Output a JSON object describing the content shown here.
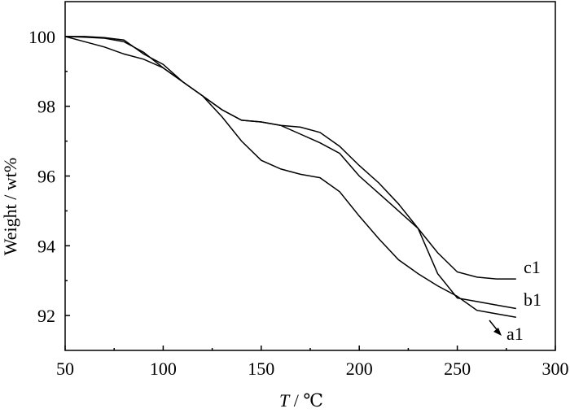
{
  "chart_data": {
    "type": "line",
    "xlabel_var": "T",
    "xlabel_unit": " / ℃",
    "ylabel": "Weight / wt%",
    "xlim": [
      50,
      300
    ],
    "ylim": [
      91,
      101
    ],
    "x_ticks": [
      50,
      100,
      150,
      200,
      250,
      300
    ],
    "y_ticks": [
      92,
      94,
      96,
      98,
      100
    ],
    "series": [
      {
        "name": "a1",
        "x": [
          50,
          60,
          70,
          80,
          90,
          100,
          110,
          120,
          130,
          140,
          150,
          160,
          170,
          180,
          190,
          200,
          210,
          220,
          230,
          240,
          250,
          260,
          270,
          280
        ],
        "y": [
          100,
          100,
          99.97,
          99.9,
          99.5,
          99.2,
          98.7,
          98.3,
          97.7,
          97.0,
          96.45,
          96.2,
          96.05,
          95.95,
          95.55,
          94.85,
          94.2,
          93.6,
          93.2,
          92.85,
          92.55,
          92.15,
          92.05,
          91.95
        ]
      },
      {
        "name": "b1",
        "x": [
          50,
          60,
          70,
          80,
          90,
          100,
          110,
          120,
          130,
          140,
          150,
          160,
          170,
          180,
          190,
          200,
          210,
          220,
          230,
          240,
          250,
          260,
          270,
          280
        ],
        "y": [
          100,
          99.85,
          99.7,
          99.5,
          99.35,
          99.1,
          98.7,
          98.3,
          97.9,
          97.6,
          97.55,
          97.45,
          97.2,
          96.95,
          96.65,
          96.0,
          95.5,
          95.0,
          94.5,
          93.2,
          92.5,
          92.4,
          92.3,
          92.2
        ]
      },
      {
        "name": "c1",
        "x": [
          50,
          60,
          70,
          80,
          90,
          100,
          110,
          120,
          130,
          140,
          150,
          160,
          170,
          180,
          190,
          200,
          210,
          220,
          230,
          240,
          250,
          260,
          270,
          280
        ],
        "y": [
          100,
          99.98,
          99.95,
          99.85,
          99.55,
          99.1,
          98.7,
          98.3,
          97.9,
          97.6,
          97.55,
          97.45,
          97.4,
          97.25,
          96.85,
          96.3,
          95.8,
          95.2,
          94.5,
          93.8,
          93.25,
          93.1,
          93.05,
          93.05
        ]
      }
    ]
  }
}
